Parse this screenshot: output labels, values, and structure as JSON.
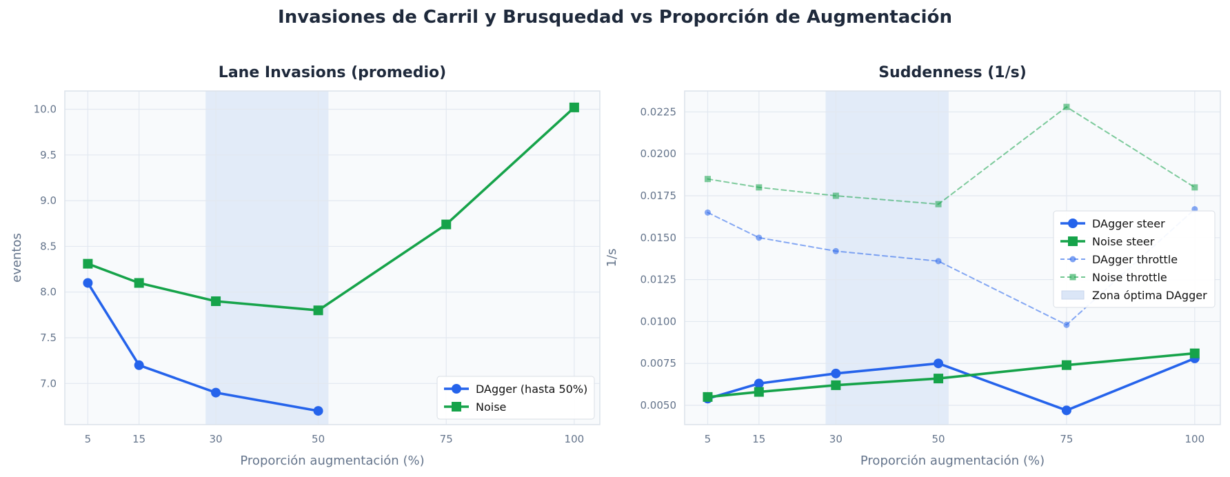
{
  "title": "Invasiones de Carril y Brusquedad vs Proporción de Augmentación",
  "colors": {
    "dagger": "#2563eb",
    "noise": "#16a34a",
    "plot_bg": "#f8fafc",
    "grid": "#e2e8f0",
    "band": "#dbe6f7"
  },
  "chart_data": [
    {
      "type": "line",
      "title": "Lane Invasions (promedio)",
      "xlabel": "Proporción augmentación (%)",
      "ylabel": "eventos",
      "x_ticks": [
        5,
        15,
        30,
        50,
        75,
        100
      ],
      "y_ticks": [
        7.0,
        7.5,
        8.0,
        8.5,
        9.0,
        9.5,
        10.0
      ],
      "y_tick_labels": [
        "7.0",
        "7.5",
        "8.0",
        "8.5",
        "9.0",
        "9.5",
        "10.0"
      ],
      "xlim": [
        0.5,
        105
      ],
      "ylim": [
        6.55,
        10.2
      ],
      "highlight_band": [
        28,
        52
      ],
      "grid": true,
      "legend_position": "lower-right",
      "series": [
        {
          "name": "DAgger (hasta 50%)",
          "color": "#2563eb",
          "marker": "circle",
          "style": "solid",
          "x": [
            5,
            15,
            30,
            50
          ],
          "values": [
            8.1,
            7.2,
            6.9,
            6.7
          ]
        },
        {
          "name": "Noise",
          "color": "#16a34a",
          "marker": "square",
          "style": "solid",
          "x": [
            5,
            15,
            30,
            50,
            75,
            100
          ],
          "values": [
            8.31,
            8.1,
            7.9,
            7.8,
            8.74,
            10.02
          ]
        }
      ],
      "legend": [
        "DAgger (hasta 50%)",
        "Noise"
      ]
    },
    {
      "type": "line",
      "title": "Suddenness (1/s)",
      "xlabel": "Proporción augmentación (%)",
      "ylabel": "1/s",
      "x_ticks": [
        5,
        15,
        30,
        50,
        75,
        100
      ],
      "y_ticks": [
        0.005,
        0.0075,
        0.01,
        0.0125,
        0.015,
        0.0175,
        0.02,
        0.0225
      ],
      "y_tick_labels": [
        "0.0050",
        "0.0075",
        "0.0100",
        "0.0125",
        "0.0150",
        "0.0175",
        "0.0200",
        "0.0225"
      ],
      "xlim": [
        0.5,
        105
      ],
      "ylim": [
        0.00385,
        0.02375
      ],
      "highlight_band": [
        28,
        52
      ],
      "grid": true,
      "legend_position": "center-right",
      "series": [
        {
          "name": "DAgger steer",
          "color": "#2563eb",
          "marker": "circle",
          "style": "solid",
          "x": [
            5,
            15,
            30,
            50,
            75,
            100
          ],
          "values": [
            0.0054,
            0.0063,
            0.0069,
            0.0075,
            0.0047,
            0.0078
          ]
        },
        {
          "name": "Noise steer",
          "color": "#16a34a",
          "marker": "square",
          "style": "solid",
          "x": [
            5,
            15,
            30,
            50,
            75,
            100
          ],
          "values": [
            0.0055,
            0.0058,
            0.0062,
            0.0066,
            0.0074,
            0.0081
          ]
        },
        {
          "name": "DAgger throttle",
          "color": "#2563eb",
          "marker": "circle",
          "style": "dashed",
          "x": [
            5,
            15,
            30,
            50,
            75,
            100
          ],
          "values": [
            0.0165,
            0.015,
            0.0142,
            0.0136,
            0.0098,
            0.0167
          ]
        },
        {
          "name": "Noise throttle",
          "color": "#16a34a",
          "marker": "square",
          "style": "dashed",
          "x": [
            5,
            15,
            30,
            50,
            75,
            100
          ],
          "values": [
            0.0185,
            0.018,
            0.0175,
            0.017,
            0.0228,
            0.018
          ]
        }
      ],
      "legend": [
        "DAgger steer",
        "Noise steer",
        "DAgger throttle",
        "Noise throttle",
        "Zona óptima DAgger"
      ]
    }
  ]
}
